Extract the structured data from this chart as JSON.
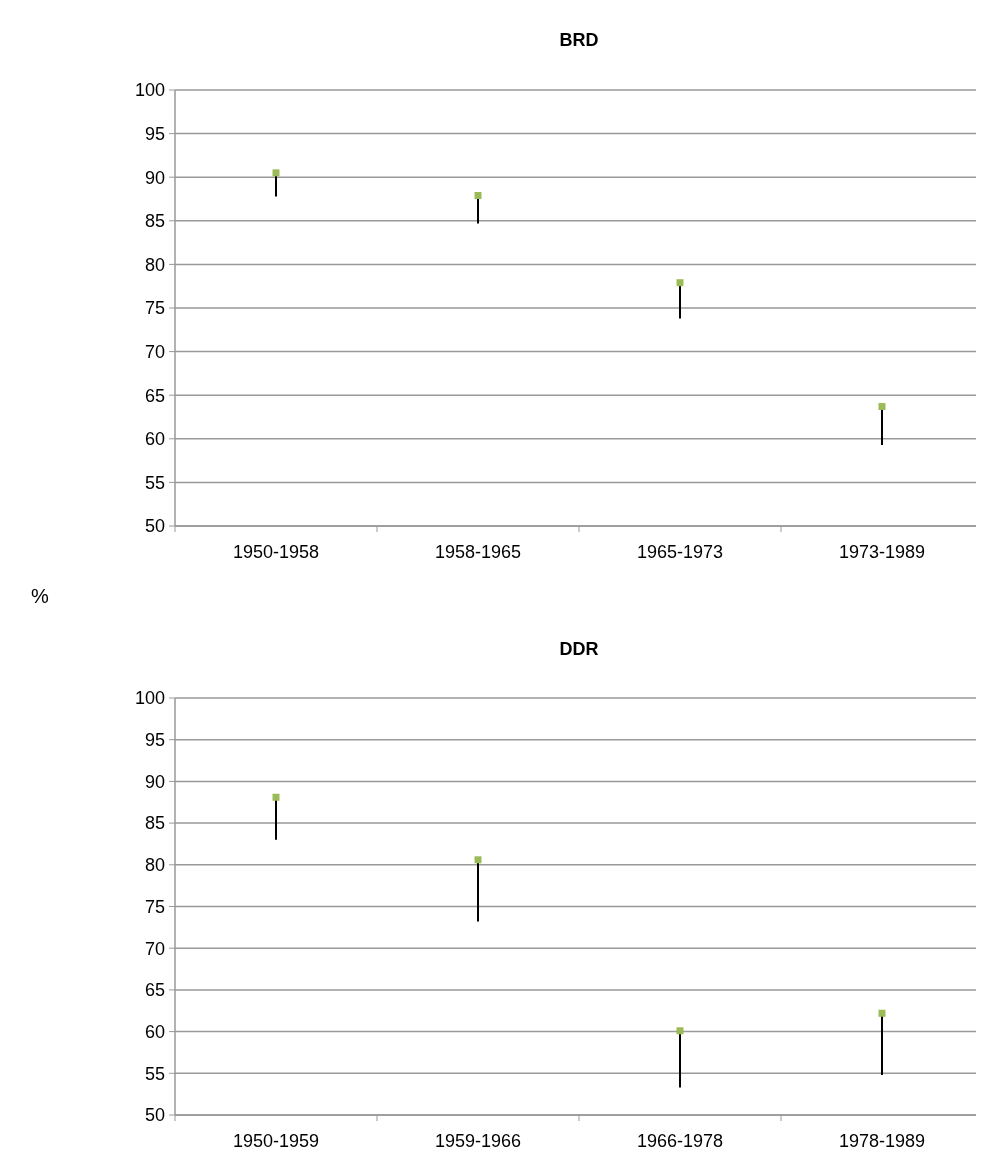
{
  "chart_data": [
    {
      "type": "scatter",
      "title": "BRD",
      "ylabel": "%",
      "categories": [
        "1950-1958",
        "1958-1965",
        "1965-1973",
        "1973-1989"
      ],
      "series": [
        {
          "color": "#9bbb59",
          "values": [
            90.5,
            87.9,
            77.9,
            63.7
          ],
          "errors": [
            [
              87.8,
              90.5
            ],
            [
              84.7,
              87.9
            ],
            [
              73.8,
              77.9
            ],
            [
              59.3,
              63.7
            ]
          ]
        }
      ],
      "ylim": [
        50,
        100
      ],
      "yticks": [
        50,
        55,
        60,
        65,
        70,
        75,
        80,
        85,
        90,
        95,
        100
      ],
      "grid": "y",
      "marker": "square"
    },
    {
      "type": "scatter",
      "title": "DDR",
      "categories": [
        "1950-1959",
        "1959-1966",
        "1966-1978",
        "1978-1989"
      ],
      "series": [
        {
          "color": "#9bbb59",
          "values": [
            88.1,
            80.6,
            60.1,
            62.2
          ],
          "errors": [
            [
              83.0,
              88.1
            ],
            [
              73.2,
              80.6
            ],
            [
              53.3,
              60.1
            ],
            [
              54.8,
              62.2
            ]
          ]
        }
      ],
      "ylim": [
        50,
        100
      ],
      "yticks": [
        50,
        55,
        60,
        65,
        70,
        75,
        80,
        85,
        90,
        95,
        100
      ],
      "grid": "y",
      "marker": "square"
    }
  ]
}
